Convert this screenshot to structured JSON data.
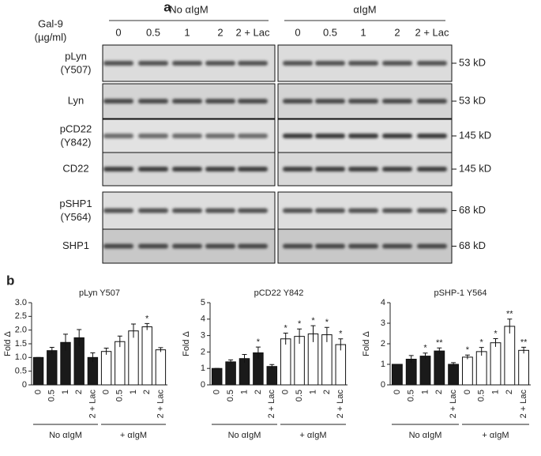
{
  "panel_a": {
    "label": "a",
    "gal9_label": "Gal-9",
    "unit_label": "(µg/ml)",
    "groups": [
      "No αIgM",
      "αIgM"
    ],
    "lanes": [
      "0",
      "0.5",
      "1",
      "2",
      "2 + Lac"
    ],
    "blots": [
      {
        "name": "pLyn",
        "site": "(Y507)",
        "size": "53 kD"
      },
      {
        "name": "Lyn",
        "size": "53 kD"
      },
      {
        "name": "pCD22",
        "site": "(Y842)",
        "size": "145 kD"
      },
      {
        "name": "CD22",
        "size": "145 kD"
      },
      {
        "name": "pSHP1",
        "site": "(Y564)",
        "size": "68 kD"
      },
      {
        "name": "SHP1",
        "size": "68 kD"
      }
    ]
  },
  "panel_b_label": "b",
  "chart_data": [
    {
      "type": "bar",
      "title": "pLyn Y507",
      "y_label": "Fold Δ",
      "categories": [
        "0",
        "0.5",
        "1",
        "2",
        "2 + Lac",
        "0",
        "0.5",
        "1",
        "2",
        "2 + Lac"
      ],
      "series": [
        {
          "name": "No αIgM",
          "color": "#1a1a1a",
          "values": [
            1.0,
            1.25,
            1.55,
            1.72,
            1.0,
            null,
            null,
            null,
            null,
            null
          ],
          "errors": [
            0,
            0.12,
            0.3,
            0.3,
            0.17,
            null,
            null,
            null,
            null,
            null
          ],
          "annotations": [
            null,
            null,
            null,
            null,
            null,
            null,
            null,
            null,
            null,
            null
          ]
        },
        {
          "name": "+ αIgM",
          "color": "#ffffff",
          "values": [
            null,
            null,
            null,
            null,
            null,
            1.22,
            1.58,
            1.97,
            2.12,
            1.28
          ],
          "errors": [
            null,
            null,
            null,
            null,
            null,
            0.12,
            0.2,
            0.25,
            0.12,
            0.08
          ],
          "annotations": [
            null,
            null,
            null,
            null,
            null,
            null,
            null,
            null,
            "*",
            null
          ]
        }
      ],
      "ylim": [
        0,
        3
      ],
      "yticks": [
        0,
        0.5,
        {
          "value": 1,
          "label": "1.0"
        },
        1.5,
        {
          "value": 2,
          "label": "2.0"
        },
        2.5,
        {
          "value": 3,
          "label": "3.0"
        }
      ]
    },
    {
      "type": "bar",
      "title": "pCD22 Y842",
      "y_label": "Fold Δ",
      "categories": [
        "0",
        "0.5",
        "1",
        "2",
        "2 + Lac",
        "0",
        "0.5",
        "1",
        "2",
        "2 + Lac"
      ],
      "series": [
        {
          "name": "No αIgM",
          "color": "#1a1a1a",
          "values": [
            1.0,
            1.4,
            1.6,
            1.95,
            1.12,
            null,
            null,
            null,
            null,
            null
          ],
          "errors": [
            0,
            0.12,
            0.25,
            0.35,
            0.12,
            null,
            null,
            null,
            null,
            null
          ],
          "annotations": [
            null,
            null,
            null,
            "*",
            null,
            null,
            null,
            null,
            null,
            null
          ]
        },
        {
          "name": "+ αIgM",
          "color": "#ffffff",
          "values": [
            null,
            null,
            null,
            null,
            null,
            2.8,
            2.95,
            3.1,
            3.05,
            2.45
          ],
          "errors": [
            null,
            null,
            null,
            null,
            null,
            0.35,
            0.45,
            0.5,
            0.45,
            0.35
          ],
          "annotations": [
            null,
            null,
            null,
            null,
            null,
            "*",
            "*",
            "*",
            "*",
            "*"
          ]
        }
      ],
      "ylim": [
        0,
        5
      ],
      "yticks": [
        0,
        1,
        2,
        3,
        4,
        5
      ]
    },
    {
      "type": "bar",
      "title": "pSHP-1 Y564",
      "y_label": "Fold Δ",
      "categories": [
        "0",
        "0.5",
        "1",
        "2",
        "2 + Lac",
        "0",
        "0.5",
        "1",
        "2",
        "2 + Lac"
      ],
      "series": [
        {
          "name": "No αIgM",
          "color": "#1a1a1a",
          "values": [
            1.0,
            1.25,
            1.4,
            1.65,
            1.0,
            null,
            null,
            null,
            null,
            null
          ],
          "errors": [
            0,
            0.18,
            0.15,
            0.15,
            0.08,
            null,
            null,
            null,
            null,
            null
          ],
          "annotations": [
            null,
            null,
            "*",
            "**",
            null,
            null,
            null,
            null,
            null,
            null
          ]
        },
        {
          "name": "+ αIgM",
          "color": "#ffffff",
          "values": [
            null,
            null,
            null,
            null,
            null,
            1.35,
            1.62,
            2.05,
            2.85,
            1.68
          ],
          "errors": [
            null,
            null,
            null,
            null,
            null,
            0.1,
            0.2,
            0.2,
            0.35,
            0.15
          ],
          "annotations": [
            null,
            null,
            null,
            null,
            null,
            "*",
            "*",
            "*",
            "**",
            "**"
          ]
        }
      ],
      "ylim": [
        0,
        4
      ],
      "yticks": [
        0,
        1,
        2,
        3,
        4
      ]
    }
  ]
}
